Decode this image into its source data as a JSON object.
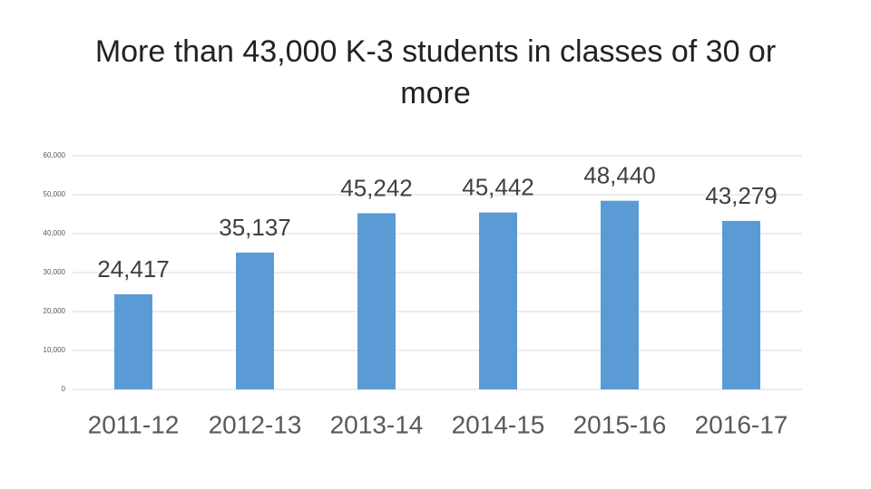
{
  "chart_data": {
    "type": "bar",
    "title": "More than 43,000 K-3 students in classes of 30 or more",
    "categories": [
      "2011-12",
      "2012-13",
      "2013-14",
      "2014-15",
      "2015-16",
      "2016-17"
    ],
    "values": [
      24417,
      35137,
      45242,
      45442,
      48440,
      43279
    ],
    "value_labels": [
      "24,417",
      "35,137",
      "45,242",
      "45,442",
      "48,440",
      "43,279"
    ],
    "color": "#5b9bd5",
    "ylim": [
      0,
      60000
    ],
    "yticks": [
      0,
      {
        "value": 10000,
        "label": "10,000"
      },
      {
        "value": 20000,
        "label": "20,000"
      },
      {
        "value": 30000,
        "label": "30,000"
      },
      {
        "value": 40000,
        "label": "40,000"
      },
      {
        "value": 50000,
        "label": "50,000"
      },
      {
        "value": 60000,
        "label": "60,000"
      }
    ],
    "grid": true
  }
}
